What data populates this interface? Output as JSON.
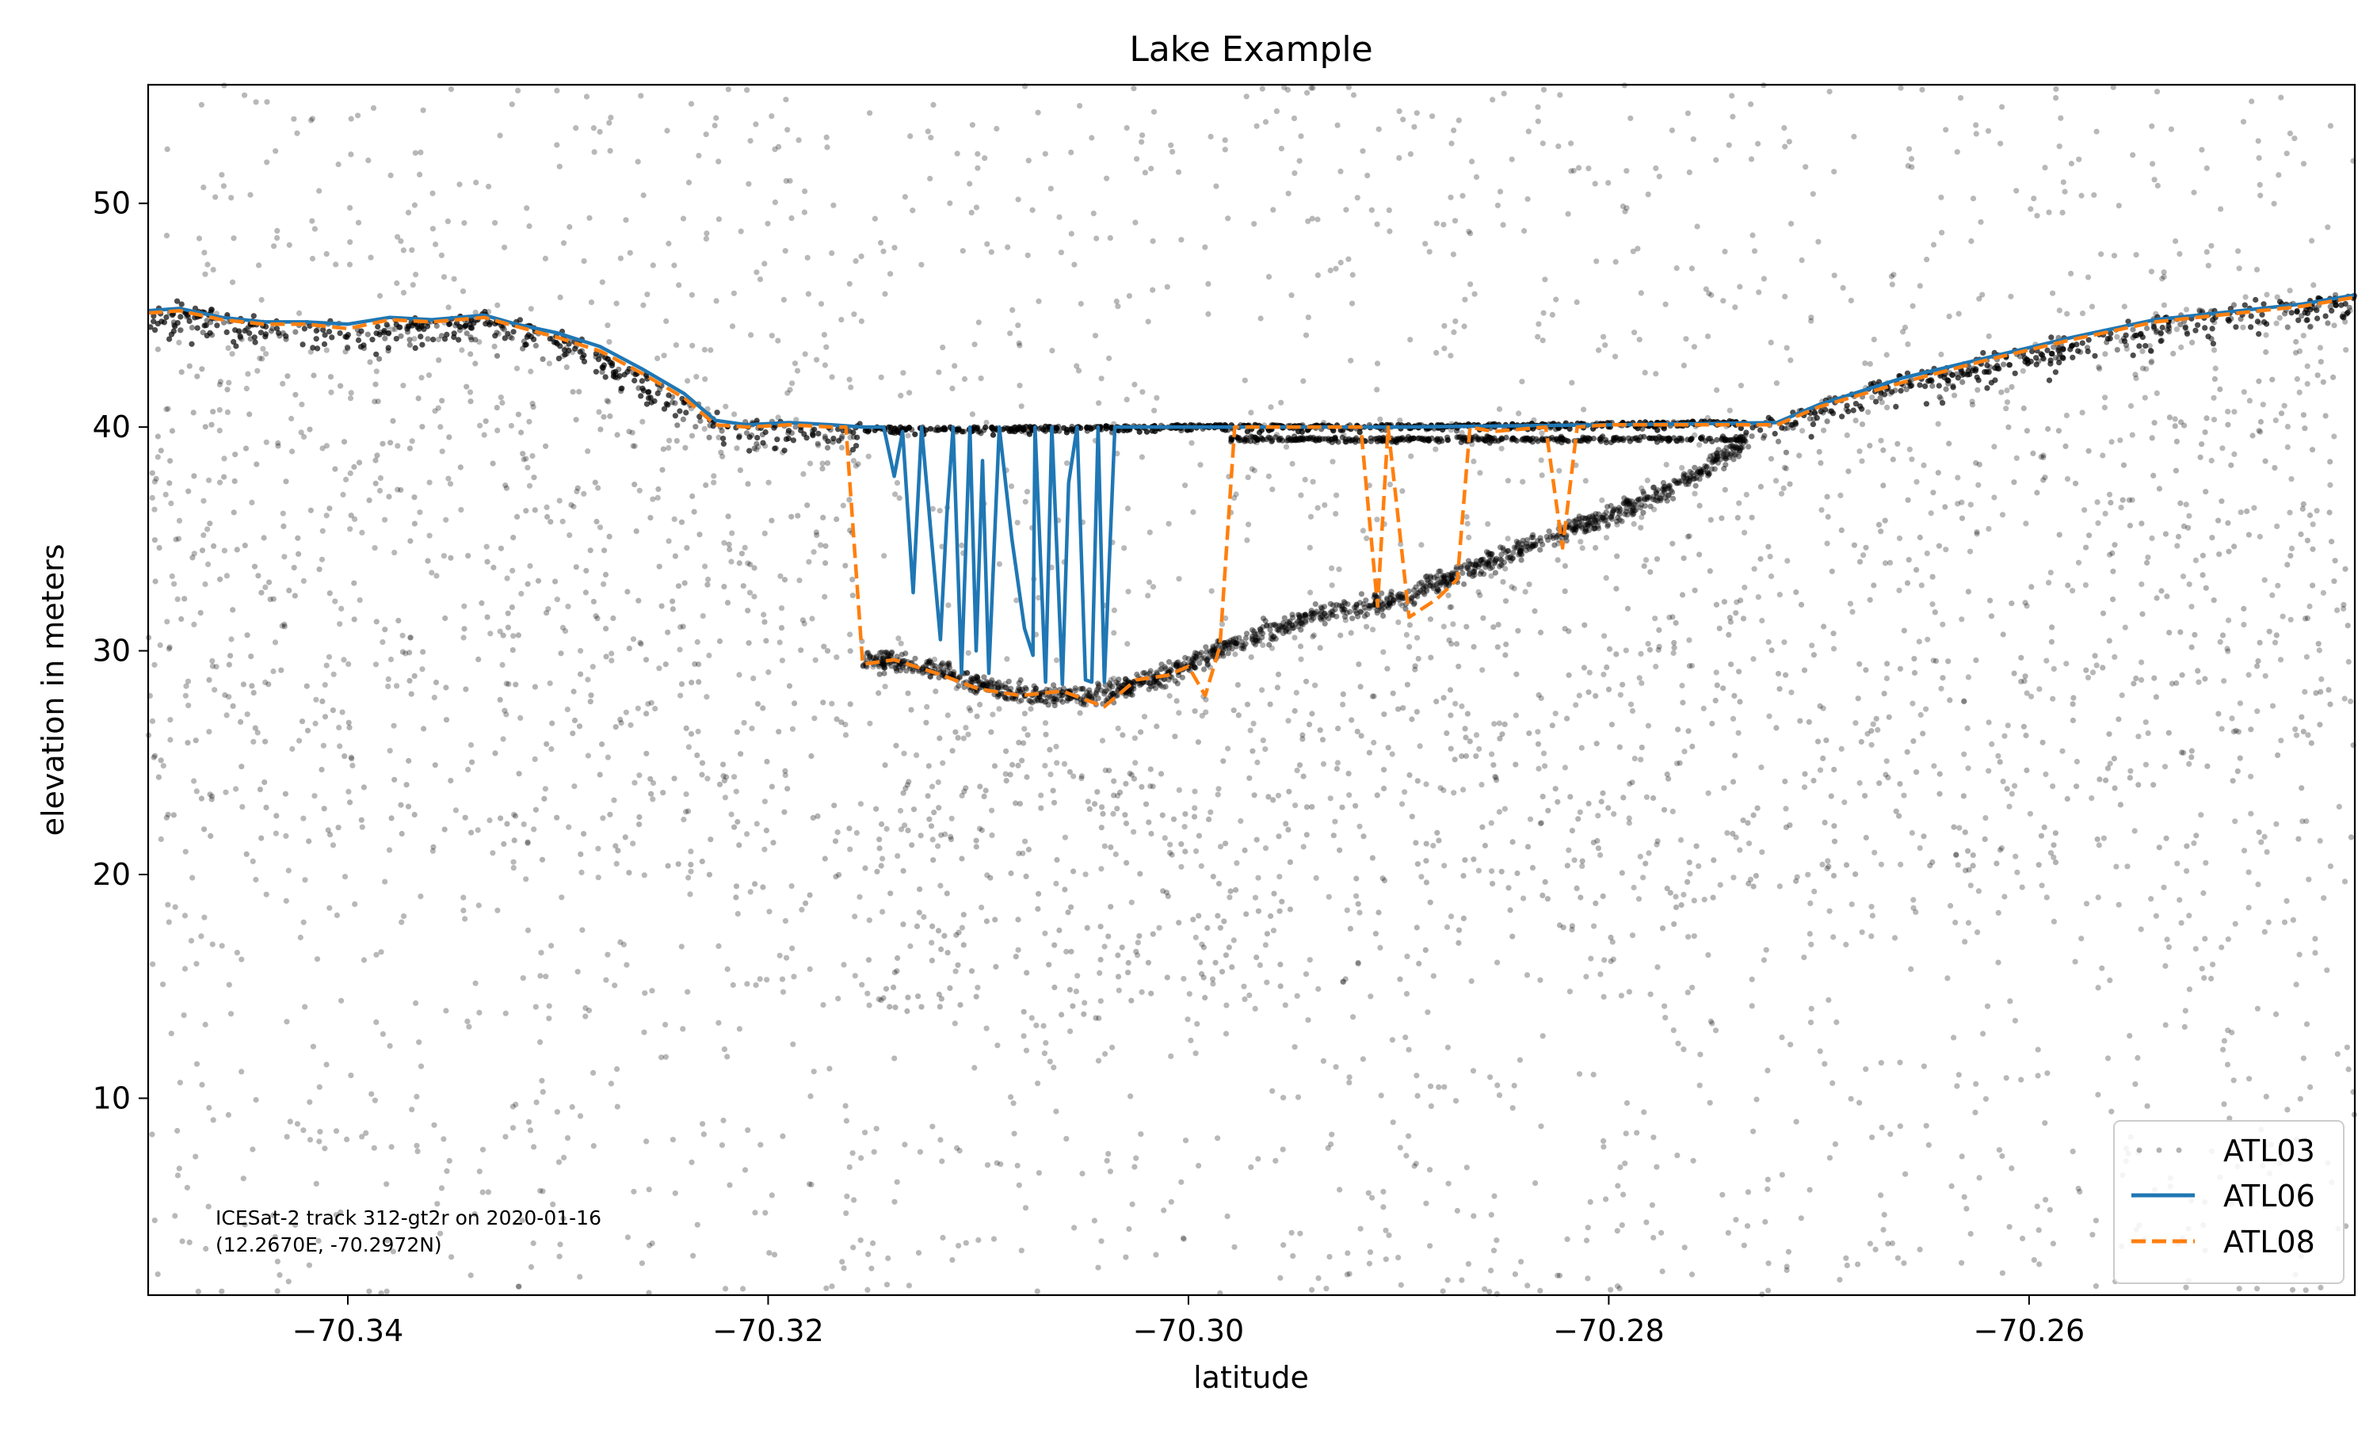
{
  "chart_data": {
    "type": "scatter",
    "title": "Lake Example",
    "xlabel": "latitude",
    "ylabel": "elevation in meters",
    "xlim": [
      -70.3495,
      -70.2445
    ],
    "ylim": [
      1.2,
      55.3
    ],
    "x_ticks": [
      -70.34,
      -70.32,
      -70.3,
      -70.28,
      -70.26
    ],
    "x_tick_labels": [
      "−70.34",
      "−70.32",
      "−70.30",
      "−70.28",
      "−70.26"
    ],
    "y_ticks": [
      10,
      20,
      30,
      40,
      50
    ],
    "y_tick_labels": [
      "10",
      "20",
      "30",
      "40",
      "50"
    ],
    "grid": false,
    "legend_position": "lower-right",
    "annotation": [
      "ICESat-2 track 312-gt2r on 2020-01-16",
      "(12.2670E, -70.2972N)"
    ],
    "series": [
      {
        "name": "ATL03",
        "kind": "scatter",
        "color": "#000000",
        "description": "photon point cloud",
        "surface_profile": [
          [
            -70.3495,
            45.1
          ],
          [
            -70.348,
            45.4
          ],
          [
            -70.345,
            44.9
          ],
          [
            -70.342,
            44.6
          ],
          [
            -70.339,
            44.4
          ],
          [
            -70.337,
            44.8
          ],
          [
            -70.334,
            44.9
          ],
          [
            -70.3335,
            45.0
          ],
          [
            -70.331,
            44.5
          ],
          [
            -70.329,
            43.9
          ],
          [
            -70.327,
            42.8
          ],
          [
            -70.325,
            41.8
          ],
          [
            -70.323,
            40.8
          ],
          [
            -70.322,
            40.1
          ],
          [
            -70.32,
            40.2
          ],
          [
            -70.3155,
            40.0
          ],
          [
            -70.31,
            40.0
          ],
          [
            -70.3,
            40.1
          ],
          [
            -70.29,
            40.1
          ],
          [
            -70.28,
            40.2
          ],
          [
            -70.272,
            40.3
          ],
          [
            -70.27,
            41.2
          ],
          [
            -70.266,
            42.3
          ],
          [
            -70.261,
            43.4
          ],
          [
            -70.256,
            44.4
          ],
          [
            -70.252,
            45.2
          ],
          [
            -70.248,
            45.6
          ],
          [
            -70.2445,
            45.9
          ]
        ],
        "bottom_profile": [
          [
            -70.3155,
            29.6
          ],
          [
            -70.312,
            29.2
          ],
          [
            -70.31,
            28.5
          ],
          [
            -70.307,
            28.0
          ],
          [
            -70.304,
            28.0
          ],
          [
            -70.301,
            29.0
          ],
          [
            -70.298,
            30.3
          ],
          [
            -70.294,
            31.6
          ],
          [
            -70.29,
            32.3
          ],
          [
            -70.287,
            33.5
          ],
          [
            -70.283,
            35.0
          ],
          [
            -70.279,
            36.4
          ],
          [
            -70.276,
            37.8
          ],
          [
            -70.2735,
            39.3
          ]
        ]
      },
      {
        "name": "ATL06",
        "kind": "line",
        "color": "#1f77b4",
        "points": [
          [
            -70.3495,
            45.2
          ],
          [
            -70.348,
            45.3
          ],
          [
            -70.346,
            44.9
          ],
          [
            -70.344,
            44.7
          ],
          [
            -70.342,
            44.7
          ],
          [
            -70.34,
            44.6
          ],
          [
            -70.338,
            44.9
          ],
          [
            -70.336,
            44.8
          ],
          [
            -70.3335,
            45.0
          ],
          [
            -70.332,
            44.6
          ],
          [
            -70.33,
            44.2
          ],
          [
            -70.328,
            43.6
          ],
          [
            -70.326,
            42.6
          ],
          [
            -70.324,
            41.5
          ],
          [
            -70.3225,
            40.3
          ],
          [
            -70.321,
            40.1
          ],
          [
            -70.319,
            40.2
          ],
          [
            -70.317,
            40.1
          ],
          [
            -70.3155,
            40.0
          ],
          [
            -70.3145,
            40.0
          ],
          [
            -70.314,
            37.8
          ],
          [
            -70.3136,
            39.8
          ],
          [
            -70.3131,
            32.6
          ],
          [
            -70.3127,
            40.0
          ],
          [
            -70.3118,
            30.5
          ],
          [
            -70.3115,
            36.0
          ],
          [
            -70.3112,
            40.0
          ],
          [
            -70.3108,
            29.0
          ],
          [
            -70.3104,
            40.0
          ],
          [
            -70.3101,
            30.0
          ],
          [
            -70.3098,
            38.5
          ],
          [
            -70.3095,
            29.0
          ],
          [
            -70.309,
            40.0
          ],
          [
            -70.3084,
            35.0
          ],
          [
            -70.3078,
            31.0
          ],
          [
            -70.3074,
            29.8
          ],
          [
            -70.3073,
            40.0
          ],
          [
            -70.3068,
            28.6
          ],
          [
            -70.3065,
            40.0
          ],
          [
            -70.306,
            28.5
          ],
          [
            -70.3057,
            37.5
          ],
          [
            -70.3053,
            40.0
          ],
          [
            -70.3049,
            28.7
          ],
          [
            -70.3046,
            28.6
          ],
          [
            -70.3043,
            40.0
          ],
          [
            -70.304,
            28.6
          ],
          [
            -70.3035,
            40.0
          ],
          [
            -70.3,
            40.0
          ],
          [
            -70.29,
            40.0
          ],
          [
            -70.28,
            40.1
          ],
          [
            -70.272,
            40.2
          ],
          [
            -70.27,
            41.0
          ],
          [
            -70.266,
            42.2
          ],
          [
            -70.262,
            43.1
          ],
          [
            -70.258,
            44.0
          ],
          [
            -70.254,
            44.8
          ],
          [
            -70.25,
            45.2
          ],
          [
            -70.247,
            45.5
          ],
          [
            -70.2445,
            45.9
          ]
        ]
      },
      {
        "name": "ATL08",
        "kind": "line",
        "dash": "dashed",
        "color": "#ff7f0e",
        "points": [
          [
            -70.3495,
            45.1
          ],
          [
            -70.348,
            45.2
          ],
          [
            -70.346,
            44.8
          ],
          [
            -70.344,
            44.6
          ],
          [
            -70.342,
            44.6
          ],
          [
            -70.34,
            44.4
          ],
          [
            -70.338,
            44.8
          ],
          [
            -70.336,
            44.7
          ],
          [
            -70.3335,
            44.9
          ],
          [
            -70.332,
            44.5
          ],
          [
            -70.33,
            44.0
          ],
          [
            -70.328,
            43.4
          ],
          [
            -70.326,
            42.4
          ],
          [
            -70.324,
            41.3
          ],
          [
            -70.3225,
            40.1
          ],
          [
            -70.321,
            40.0
          ],
          [
            -70.319,
            40.1
          ],
          [
            -70.317,
            40.0
          ],
          [
            -70.3163,
            40.0
          ],
          [
            -70.3155,
            29.4
          ],
          [
            -70.314,
            29.6
          ],
          [
            -70.312,
            29.0
          ],
          [
            -70.31,
            28.3
          ],
          [
            -70.308,
            28.0
          ],
          [
            -70.306,
            28.2
          ],
          [
            -70.304,
            27.5
          ],
          [
            -70.3025,
            28.7
          ],
          [
            -70.301,
            28.9
          ],
          [
            -70.3,
            29.3
          ],
          [
            -70.2992,
            28.0
          ],
          [
            -70.2985,
            30.2
          ],
          [
            -70.2978,
            40.0
          ],
          [
            -70.295,
            40.0
          ],
          [
            -70.2918,
            40.0
          ],
          [
            -70.291,
            32.0
          ],
          [
            -70.2905,
            40.0
          ],
          [
            -70.2895,
            31.5
          ],
          [
            -70.2882,
            32.3
          ],
          [
            -70.2872,
            33.2
          ],
          [
            -70.2866,
            40.0
          ],
          [
            -70.2855,
            39.8
          ],
          [
            -70.283,
            40.0
          ],
          [
            -70.2822,
            34.6
          ],
          [
            -70.2815,
            40.0
          ],
          [
            -70.28,
            40.1
          ],
          [
            -70.275,
            40.1
          ],
          [
            -70.272,
            40.1
          ],
          [
            -70.27,
            40.9
          ],
          [
            -70.266,
            42.0
          ],
          [
            -70.262,
            43.0
          ],
          [
            -70.258,
            43.9
          ],
          [
            -70.254,
            44.7
          ],
          [
            -70.25,
            45.1
          ],
          [
            -70.247,
            45.4
          ],
          [
            -70.2445,
            45.8
          ]
        ]
      }
    ]
  }
}
